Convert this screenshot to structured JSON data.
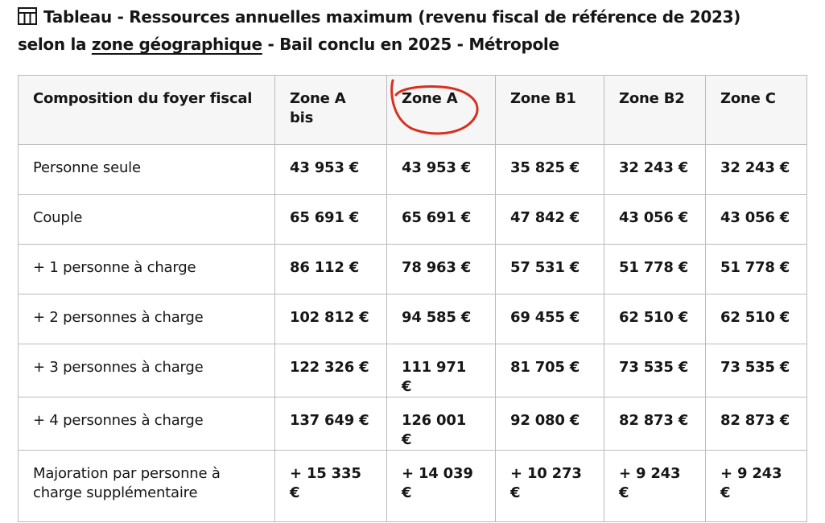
{
  "header": {
    "title_parts": [
      "Tableau - Ressources annuelles maximum (revenu fiscal de référence de 2023)",
      "selon la",
      "zone géographique",
      "- Bail conclu en 2025 - Métropole"
    ]
  },
  "table": {
    "columns": [
      "Composition du foyer fiscal",
      "Zone A bis",
      "Zone A",
      "Zone B1",
      "Zone B2",
      "Zone C"
    ],
    "rows": [
      [
        "Personne seule",
        "43 953 €",
        "43 953 €",
        "35 825 €",
        "32 243 €",
        "32 243 €"
      ],
      [
        "Couple",
        "65 691 €",
        "65 691 €",
        "47 842 €",
        "43 056 €",
        "43 056 €"
      ],
      [
        "+ 1 personne à charge",
        "86 112 €",
        "78 963 €",
        "57 531 €",
        "51 778 €",
        "51 778 €"
      ],
      [
        "+ 2 personnes à charge",
        "102 812 €",
        "94 585 €",
        "69 455 €",
        "62 510 €",
        "62 510 €"
      ],
      [
        "+ 3 personnes à charge",
        "122 326 €",
        "111 971 €",
        "81 705 €",
        "73 535 €",
        "73 535 €"
      ],
      [
        "+ 4 personnes à charge",
        "137 649 €",
        "126 001 €",
        "92 080 €",
        "82 873 €",
        "82 873 €"
      ],
      [
        "Majoration par personne à charge supplémentaire",
        "+ 15 335 €",
        "+ 14 039 €",
        "+ 10 273 €",
        "+ 9 243 €",
        "+ 9 243 €"
      ]
    ]
  }
}
